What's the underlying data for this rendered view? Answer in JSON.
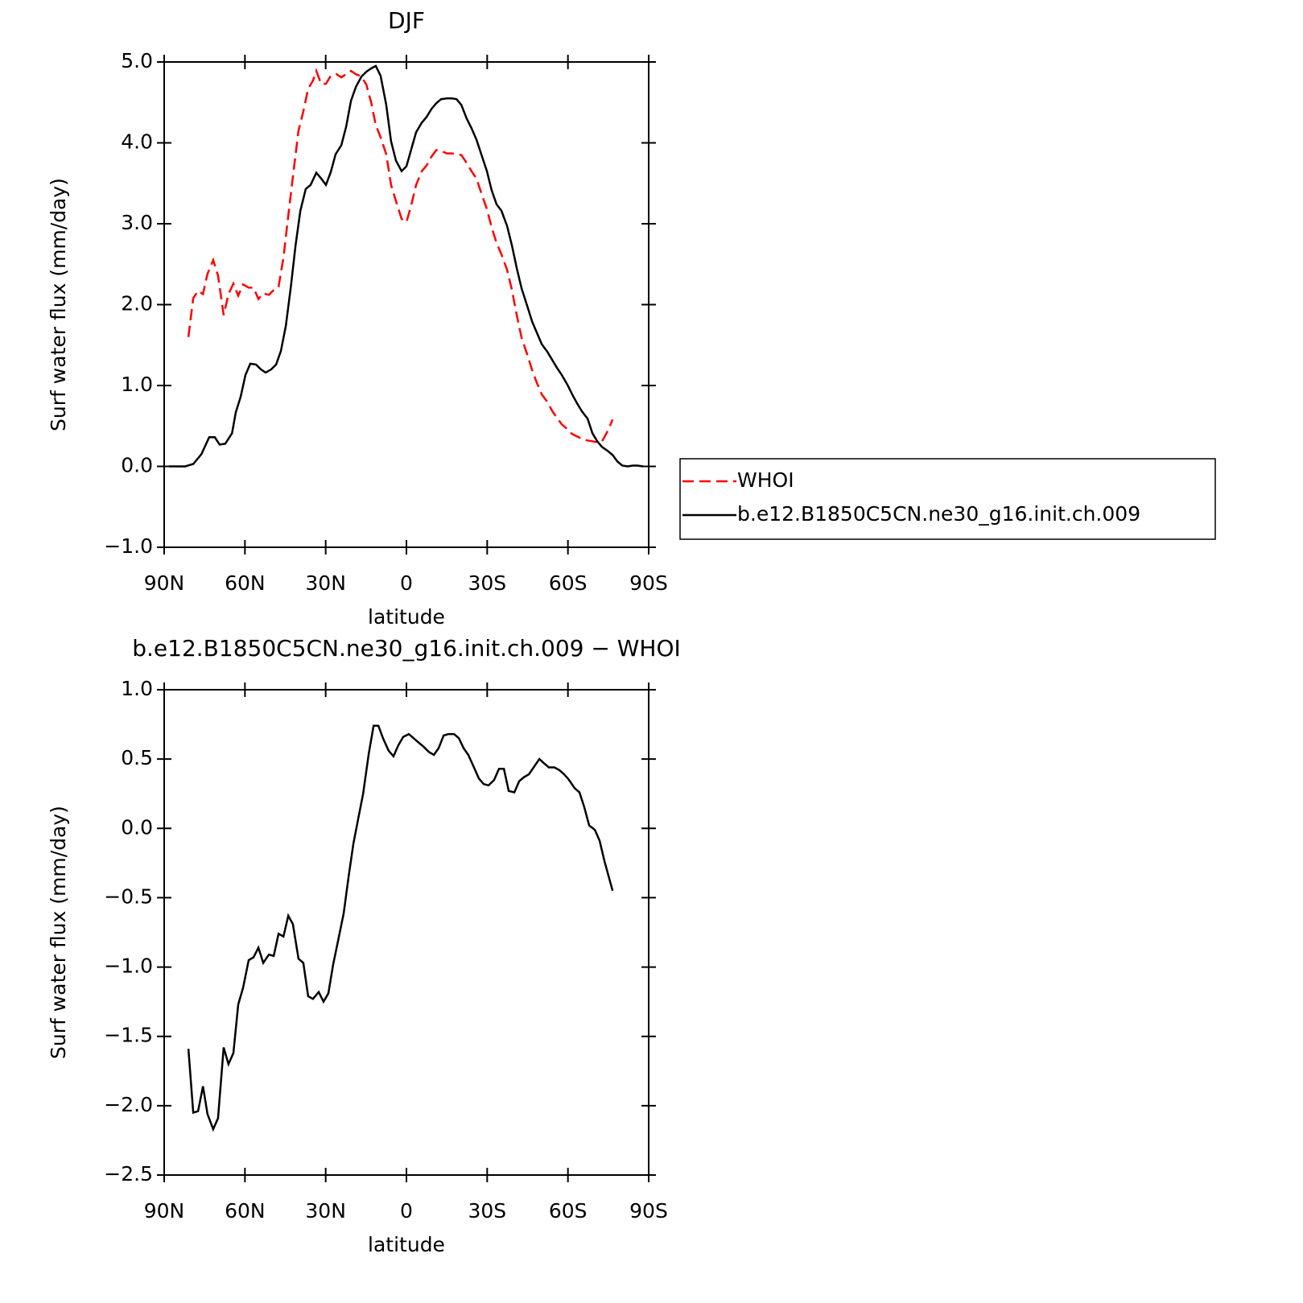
{
  "chart_data": [
    {
      "type": "line",
      "title": "DJF",
      "x_label": "latitude",
      "y_label": "Surf water flux (mm/day)",
      "xlim": [
        90,
        -90
      ],
      "xticks": [
        {
          "value": 90,
          "label": "90N"
        },
        {
          "value": 60,
          "label": "60N"
        },
        {
          "value": 30,
          "label": "30N"
        },
        0,
        {
          "value": -30,
          "label": "30S"
        },
        {
          "value": -60,
          "label": "60S"
        },
        {
          "value": -90,
          "label": "90S"
        }
      ],
      "ylim": [
        -1,
        5
      ],
      "yticks": [
        {
          "value": -1,
          "label": "−1.0"
        },
        {
          "value": 0,
          "label": "0.0"
        },
        {
          "value": 1,
          "label": "1.0"
        },
        {
          "value": 2,
          "label": "2.0"
        },
        {
          "value": 3,
          "label": "3.0"
        },
        {
          "value": 4,
          "label": "4.0"
        },
        {
          "value": 5,
          "label": "5.0"
        }
      ],
      "legend": "right",
      "series": [
        {
          "name": "WHOI",
          "color": "#ff0000",
          "line_style": "dashed",
          "x": [
            81.0,
            79.2,
            77.4,
            75.6,
            73.9,
            71.8,
            70.0,
            67.9,
            66.1,
            64.3,
            62.5,
            60.7,
            58.6,
            56.8,
            55.0,
            53.2,
            51.1,
            49.3,
            47.5,
            45.7,
            43.9,
            42.2,
            40.1,
            38.3,
            36.5,
            34.7,
            33.5,
            31.7,
            29.9,
            28.1,
            26.0,
            24.2,
            22.4,
            20.6,
            18.8,
            16.7,
            14.9,
            13.1,
            11.4,
            9.6,
            7.5,
            5.7,
            3.9,
            1.8,
            0,
            -1.8,
            -3.6,
            -5.7,
            -7.5,
            -9.3,
            -11.1,
            -12.9,
            -15.0,
            -16.8,
            -18.6,
            -20.4,
            -22.4,
            -24.2,
            -26.0,
            -27.8,
            -29.9,
            -31.7,
            -33.5,
            -35.3,
            -37.4,
            -39.2,
            -41.0,
            -42.8,
            -44.9,
            -46.7,
            -48.5,
            -50.3,
            -52.3,
            -54.1,
            -55.9,
            -57.7,
            -59.8,
            -61.6,
            -63.4,
            -65.2,
            -67.3,
            -69.1,
            -70.9,
            -72.7,
            -74.8,
            -76.6
          ],
          "values": [
            1.6,
            2.08,
            2.17,
            2.13,
            2.38,
            2.55,
            2.36,
            1.87,
            2.13,
            2.26,
            2.11,
            2.25,
            2.21,
            2.21,
            2.07,
            2.14,
            2.12,
            2.18,
            2.22,
            2.58,
            3.1,
            3.58,
            4.15,
            4.39,
            4.67,
            4.77,
            4.89,
            4.73,
            4.73,
            4.83,
            4.85,
            4.81,
            4.85,
            4.89,
            4.85,
            4.82,
            4.72,
            4.5,
            4.22,
            4.07,
            3.86,
            3.48,
            3.28,
            3.06,
            3.02,
            3.23,
            3.48,
            3.65,
            3.72,
            3.83,
            3.91,
            3.9,
            3.87,
            3.87,
            3.86,
            3.85,
            3.75,
            3.65,
            3.56,
            3.38,
            3.18,
            2.95,
            2.76,
            2.62,
            2.43,
            2.18,
            1.87,
            1.59,
            1.38,
            1.19,
            1.03,
            0.89,
            0.8,
            0.69,
            0.6,
            0.52,
            0.46,
            0.4,
            0.37,
            0.34,
            0.32,
            0.31,
            0.3,
            0.31,
            0.44,
            0.58
          ]
        },
        {
          "name": "b.e12.B1850C5CN.ne30_g16.init.ch.009",
          "color": "#000000",
          "line_style": "solid",
          "x": [
            88.2,
            82.2,
            79.2,
            76.2,
            73.3,
            71.2,
            69.4,
            67.3,
            64.8,
            63.4,
            61.6,
            59.8,
            58.0,
            55.9,
            54.1,
            52.3,
            50.2,
            48.4,
            46.6,
            44.8,
            42.9,
            41.2,
            39.4,
            37.4,
            35.6,
            33.5,
            31.7,
            29.9,
            28.1,
            26.3,
            24.2,
            22.4,
            20.6,
            18.8,
            16.7,
            14.9,
            13.1,
            11.4,
            9.6,
            7.5,
            5.7,
            3.9,
            1.8,
            0,
            -1.8,
            -3.6,
            -5.7,
            -7.5,
            -9.3,
            -11.1,
            -12.9,
            -15.0,
            -16.8,
            -18.6,
            -20.4,
            -22.4,
            -24.2,
            -26.0,
            -27.8,
            -29.9,
            -31.7,
            -33.5,
            -35.3,
            -37.4,
            -39.2,
            -41.0,
            -42.8,
            -44.9,
            -46.7,
            -48.5,
            -50.3,
            -52.3,
            -54.1,
            -55.9,
            -57.7,
            -59.8,
            -61.6,
            -63.4,
            -65.2,
            -67.3,
            -69.1,
            -70.9,
            -72.7,
            -74.8,
            -76.6,
            -78.4,
            -80.2,
            -82.2,
            -84.0,
            -85.8,
            -87.9
          ],
          "values": [
            0.0,
            0.0,
            0.03,
            0.15,
            0.36,
            0.36,
            0.27,
            0.28,
            0.41,
            0.67,
            0.86,
            1.13,
            1.27,
            1.26,
            1.2,
            1.16,
            1.2,
            1.26,
            1.43,
            1.74,
            2.23,
            2.73,
            3.16,
            3.43,
            3.48,
            3.63,
            3.56,
            3.48,
            3.64,
            3.86,
            3.97,
            4.2,
            4.52,
            4.69,
            4.82,
            4.88,
            4.92,
            4.95,
            4.83,
            4.47,
            4.02,
            3.78,
            3.65,
            3.71,
            3.92,
            4.13,
            4.25,
            4.32,
            4.42,
            4.49,
            4.54,
            4.55,
            4.55,
            4.54,
            4.47,
            4.3,
            4.18,
            4.04,
            3.86,
            3.65,
            3.41,
            3.24,
            3.16,
            2.97,
            2.73,
            2.45,
            2.2,
            1.98,
            1.79,
            1.65,
            1.51,
            1.42,
            1.32,
            1.22,
            1.13,
            1.01,
            0.89,
            0.78,
            0.68,
            0.59,
            0.41,
            0.31,
            0.24,
            0.19,
            0.14,
            0.06,
            0.01,
            0.0,
            0.01,
            0.01,
            0.0
          ]
        }
      ]
    },
    {
      "type": "line",
      "title": "b.e12.B1850C5CN.ne30_g16.init.ch.009 − WHOI",
      "x_label": "latitude",
      "y_label": "Surf water flux (mm/day)",
      "xlim": [
        90,
        -90
      ],
      "xticks": [
        {
          "value": 90,
          "label": "90N"
        },
        {
          "value": 60,
          "label": "60N"
        },
        {
          "value": 30,
          "label": "30N"
        },
        0,
        {
          "value": -30,
          "label": "30S"
        },
        {
          "value": -60,
          "label": "60S"
        },
        {
          "value": -90,
          "label": "90S"
        }
      ],
      "ylim": [
        -2.5,
        1
      ],
      "yticks": [
        {
          "value": -2.5,
          "label": "−2.5"
        },
        {
          "value": -2,
          "label": "−2.0"
        },
        {
          "value": -1.5,
          "label": "−1.5"
        },
        {
          "value": -1,
          "label": "−1.0"
        },
        {
          "value": -0.5,
          "label": "−0.5"
        },
        {
          "value": 0,
          "label": "0.0"
        },
        {
          "value": 0.5,
          "label": "0.5"
        },
        {
          "value": 1,
          "label": "1.0"
        }
      ],
      "color": "#000000",
      "x": [
        81.0,
        79.2,
        77.4,
        75.6,
        73.9,
        71.8,
        70.0,
        67.9,
        66.1,
        64.3,
        62.5,
        60.7,
        58.6,
        56.8,
        55.0,
        53.2,
        51.1,
        49.3,
        47.5,
        45.7,
        43.9,
        42.2,
        40.1,
        38.3,
        36.5,
        34.7,
        32.6,
        30.8,
        29.0,
        27.2,
        25.4,
        23.3,
        21.5,
        19.7,
        17.9,
        16.1,
        14.0,
        12.2,
        10.4,
        8.7,
        6.6,
        4.8,
        3.0,
        1.2,
        -0.9,
        -2.7,
        -4.5,
        -6.3,
        -8.4,
        -10.2,
        -12.0,
        -13.8,
        -15.6,
        -17.7,
        -19.5,
        -21.2,
        -23.0,
        -25.1,
        -26.9,
        -28.7,
        -30.5,
        -32.6,
        -34.4,
        -36.2,
        -38.0,
        -40.1,
        -41.9,
        -43.7,
        -45.5,
        -47.6,
        -49.4,
        -51.1,
        -52.9,
        -55.0,
        -56.8,
        -58.6,
        -60.4,
        -62.5,
        -64.3,
        -66.1,
        -67.9,
        -70.0,
        -71.8,
        -73.6,
        -76.6
      ],
      "values": [
        -1.59,
        -2.05,
        -2.04,
        -1.86,
        -2.06,
        -2.17,
        -2.09,
        -1.58,
        -1.7,
        -1.62,
        -1.27,
        -1.15,
        -0.95,
        -0.93,
        -0.86,
        -0.97,
        -0.91,
        -0.92,
        -0.76,
        -0.78,
        -0.63,
        -0.69,
        -0.94,
        -0.97,
        -1.21,
        -1.23,
        -1.18,
        -1.25,
        -1.19,
        -0.98,
        -0.81,
        -0.61,
        -0.35,
        -0.11,
        0.07,
        0.25,
        0.54,
        0.74,
        0.74,
        0.65,
        0.56,
        0.52,
        0.6,
        0.66,
        0.68,
        0.65,
        0.62,
        0.59,
        0.55,
        0.53,
        0.58,
        0.67,
        0.68,
        0.68,
        0.65,
        0.58,
        0.53,
        0.44,
        0.36,
        0.32,
        0.31,
        0.35,
        0.43,
        0.43,
        0.27,
        0.26,
        0.34,
        0.37,
        0.39,
        0.45,
        0.5,
        0.47,
        0.44,
        0.44,
        0.42,
        0.39,
        0.35,
        0.29,
        0.26,
        0.15,
        0.02,
        -0.01,
        -0.09,
        -0.24,
        -0.45
      ]
    }
  ]
}
